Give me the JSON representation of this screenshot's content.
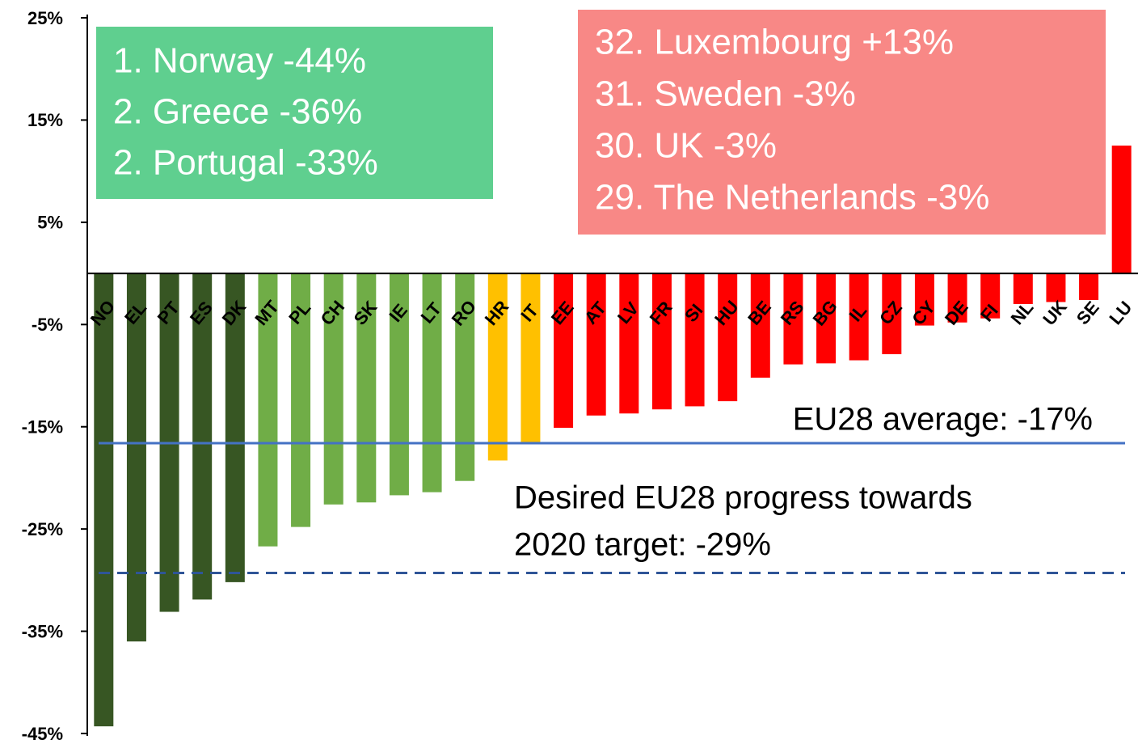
{
  "chart_data": {
    "type": "bar",
    "categories": [
      "NO",
      "EL",
      "PT",
      "ES",
      "DK",
      "MT",
      "PL",
      "CH",
      "SK",
      "IE",
      "LT",
      "RO",
      "HR",
      "IT",
      "EE",
      "AT",
      "LV",
      "FR",
      "SI",
      "HU",
      "BE",
      "RS",
      "BG",
      "IL",
      "CZ",
      "CY",
      "DE",
      "FI",
      "NL",
      "UK",
      "SE",
      "LU"
    ],
    "values": [
      -44.3,
      -36,
      -33.1,
      -31.9,
      -30.2,
      -26.7,
      -24.8,
      -22.6,
      -22.4,
      -21.7,
      -21.4,
      -20.3,
      -18.3,
      -16.5,
      -15.1,
      -13.9,
      -13.7,
      -13.3,
      -13,
      -12.5,
      -10.2,
      -8.9,
      -8.8,
      -8.5,
      -7.9,
      -5.1,
      -4.8,
      -4.4,
      -3,
      -2.8,
      -2.6,
      12.5
    ],
    "colors": [
      "#375623",
      "#375623",
      "#375623",
      "#375623",
      "#375623",
      "#70ad47",
      "#70ad47",
      "#70ad47",
      "#70ad47",
      "#70ad47",
      "#70ad47",
      "#70ad47",
      "#ffc000",
      "#ffc000",
      "#ff0000",
      "#ff0000",
      "#ff0000",
      "#ff0000",
      "#ff0000",
      "#ff0000",
      "#ff0000",
      "#ff0000",
      "#ff0000",
      "#ff0000",
      "#ff0000",
      "#ff0000",
      "#ff0000",
      "#ff0000",
      "#ff0000",
      "#ff0000",
      "#ff0000",
      "#ff0000"
    ],
    "ylim": [
      -45,
      25
    ],
    "yticks": [
      {
        "value": 25,
        "label": "25%"
      },
      {
        "value": 15,
        "label": "15%"
      },
      {
        "value": 5,
        "label": "5%"
      },
      {
        "value": -5,
        "label": "-5%"
      },
      {
        "value": -15,
        "label": "-15%"
      },
      {
        "value": -25,
        "label": "-25%"
      },
      {
        "value": -35,
        "label": "-35%"
      },
      {
        "value": -45,
        "label": "-45%"
      }
    ],
    "reference_lines": [
      {
        "value": -16.6,
        "color": "#4472c4",
        "dashed": false,
        "label_lines": [
          "EU28 average: -17%"
        ]
      },
      {
        "value": -29.3,
        "color": "#2f5597",
        "dashed": true,
        "label_lines": [
          "Desired EU28 progress towards",
          "2020 target: -29%"
        ]
      }
    ],
    "annotations": [
      {
        "color": "#5fcf8f",
        "lines": [
          "1. Norway -44%",
          "2. Greece -36%",
          "2. Portugal -33%"
        ]
      },
      {
        "color": "#f88886",
        "lines": [
          "32. Luxembourg +13%",
          "31. Sweden -3%",
          "30. UK -3%",
          "29. The Netherlands -3%"
        ]
      }
    ]
  }
}
